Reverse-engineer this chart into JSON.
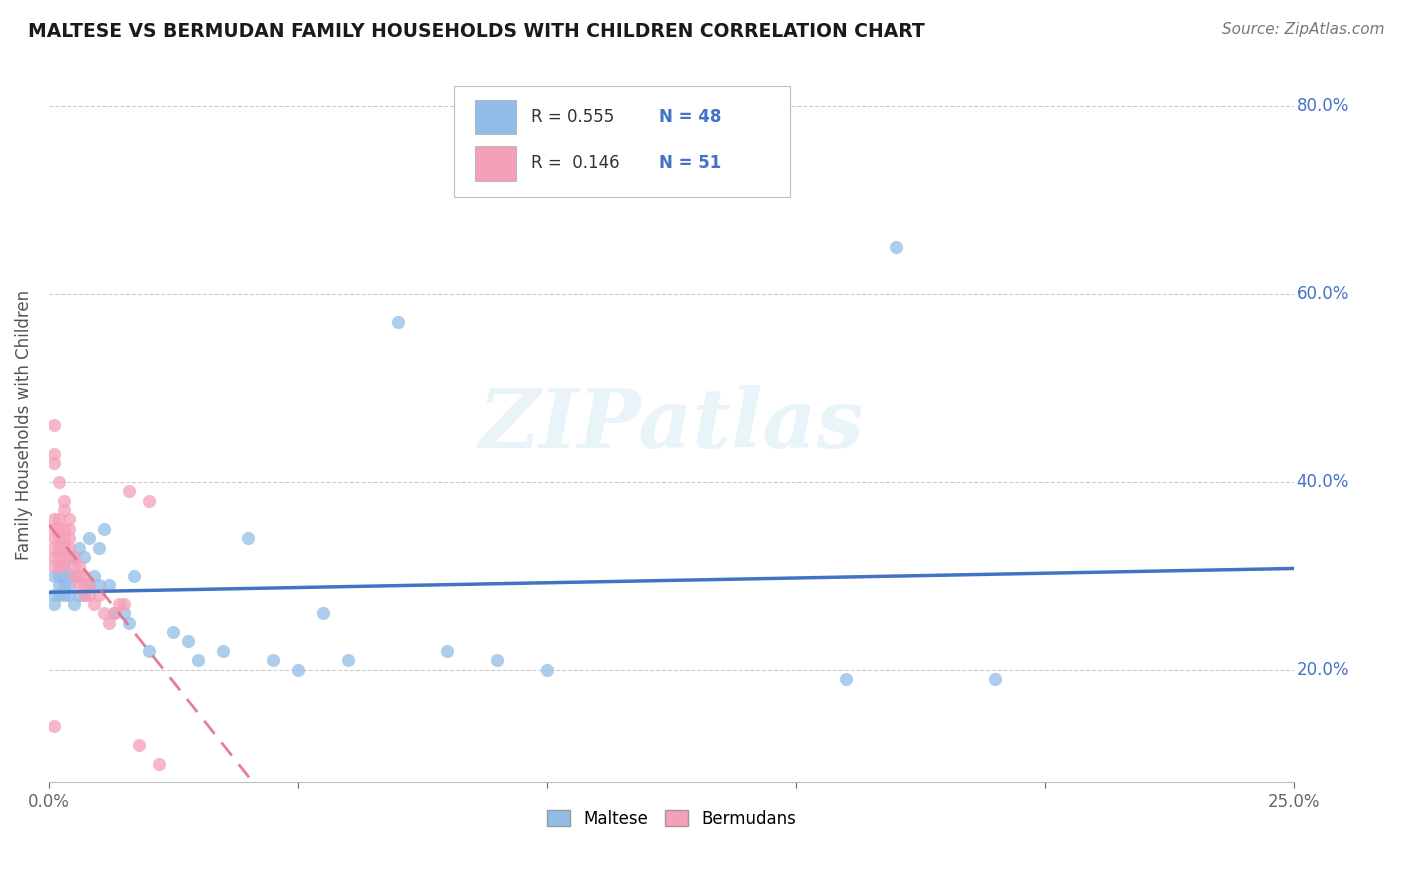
{
  "title": "MALTESE VS BERMUDAN FAMILY HOUSEHOLDS WITH CHILDREN CORRELATION CHART",
  "source": "Source: ZipAtlas.com",
  "ylabel": "Family Households with Children",
  "xlim": [
    0.0,
    0.25
  ],
  "ylim": [
    0.08,
    0.84
  ],
  "xticks": [
    0.0,
    0.05,
    0.1,
    0.15,
    0.2,
    0.25
  ],
  "xtick_labels": [
    "0.0%",
    "",
    "",
    "",
    "",
    "25.0%"
  ],
  "yticks": [
    0.2,
    0.4,
    0.6,
    0.8
  ],
  "ytick_labels": [
    "20.0%",
    "40.0%",
    "60.0%",
    "80.0%"
  ],
  "maltese_R": 0.555,
  "maltese_N": 48,
  "bermudan_R": 0.146,
  "bermudan_N": 51,
  "maltese_color": "#92BDE8",
  "bermudan_color": "#F4A0B8",
  "maltese_line_color": "#4472C4",
  "bermudan_line_color": "#E07090",
  "watermark_text": "ZIPatlas",
  "background_color": "#ffffff",
  "maltese_x": [
    0.001,
    0.001,
    0.001,
    0.002,
    0.002,
    0.002,
    0.003,
    0.003,
    0.003,
    0.003,
    0.004,
    0.004,
    0.004,
    0.005,
    0.005,
    0.005,
    0.006,
    0.006,
    0.007,
    0.007,
    0.008,
    0.008,
    0.009,
    0.01,
    0.01,
    0.011,
    0.012,
    0.013,
    0.015,
    0.016,
    0.017,
    0.02,
    0.025,
    0.028,
    0.03,
    0.035,
    0.04,
    0.045,
    0.05,
    0.055,
    0.06,
    0.07,
    0.08,
    0.09,
    0.1,
    0.16,
    0.17,
    0.19
  ],
  "maltese_y": [
    0.3,
    0.28,
    0.27,
    0.3,
    0.29,
    0.28,
    0.31,
    0.3,
    0.29,
    0.28,
    0.3,
    0.29,
    0.28,
    0.32,
    0.3,
    0.27,
    0.33,
    0.28,
    0.32,
    0.28,
    0.34,
    0.29,
    0.3,
    0.33,
    0.29,
    0.35,
    0.29,
    0.26,
    0.26,
    0.25,
    0.3,
    0.22,
    0.24,
    0.23,
    0.21,
    0.22,
    0.34,
    0.21,
    0.2,
    0.26,
    0.21,
    0.57,
    0.22,
    0.21,
    0.2,
    0.19,
    0.65,
    0.19
  ],
  "bermudan_x": [
    0.001,
    0.001,
    0.001,
    0.001,
    0.001,
    0.001,
    0.001,
    0.001,
    0.002,
    0.002,
    0.002,
    0.002,
    0.002,
    0.002,
    0.003,
    0.003,
    0.003,
    0.003,
    0.003,
    0.004,
    0.004,
    0.004,
    0.004,
    0.005,
    0.005,
    0.005,
    0.006,
    0.006,
    0.006,
    0.007,
    0.007,
    0.007,
    0.008,
    0.008,
    0.009,
    0.01,
    0.011,
    0.012,
    0.013,
    0.014,
    0.015,
    0.016,
    0.018,
    0.02,
    0.022,
    0.001,
    0.001,
    0.002,
    0.003,
    0.003,
    0.004
  ],
  "bermudan_y": [
    0.46,
    0.42,
    0.36,
    0.35,
    0.34,
    0.33,
    0.32,
    0.31,
    0.36,
    0.35,
    0.34,
    0.33,
    0.32,
    0.31,
    0.35,
    0.34,
    0.33,
    0.32,
    0.31,
    0.35,
    0.34,
    0.33,
    0.32,
    0.32,
    0.31,
    0.3,
    0.31,
    0.3,
    0.29,
    0.3,
    0.29,
    0.28,
    0.29,
    0.28,
    0.27,
    0.28,
    0.26,
    0.25,
    0.26,
    0.27,
    0.27,
    0.39,
    0.12,
    0.38,
    0.1,
    0.43,
    0.14,
    0.4,
    0.38,
    0.37,
    0.36
  ]
}
